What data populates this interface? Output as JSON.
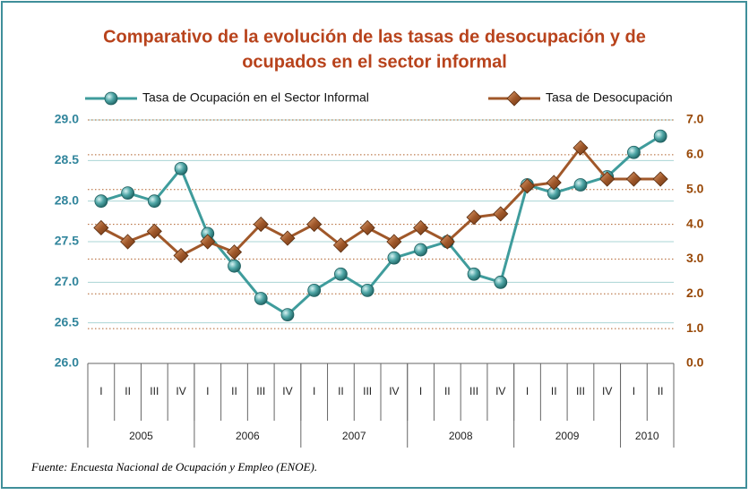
{
  "chart_data": {
    "type": "line",
    "title_lines": [
      "Comparativo de la evolución de las tasas de desocupación y de",
      "ocupados en el sector informal"
    ],
    "categories": [
      "I",
      "II",
      "III",
      "IV",
      "I",
      "II",
      "III",
      "IV",
      "I",
      "II",
      "III",
      "IV",
      "I",
      "II",
      "III",
      "IV",
      "I",
      "II",
      "III",
      "IV",
      "I",
      "II"
    ],
    "years": [
      {
        "label": "2005",
        "quarters": 4
      },
      {
        "label": "2006",
        "quarters": 4
      },
      {
        "label": "2007",
        "quarters": 4
      },
      {
        "label": "2008",
        "quarters": 4
      },
      {
        "label": "2009",
        "quarters": 4
      },
      {
        "label": "2010",
        "quarters": 2
      }
    ],
    "series": [
      {
        "name": "Tasa de Ocupación en el Sector Informal",
        "color": "#3f9c9c",
        "marker": "circle",
        "axis": "y",
        "values": [
          28.0,
          28.1,
          28.0,
          28.4,
          27.6,
          27.2,
          26.8,
          26.6,
          26.9,
          27.1,
          26.9,
          27.3,
          27.4,
          27.5,
          27.1,
          27.0,
          28.2,
          28.1,
          28.2,
          28.3,
          28.6,
          28.8
        ]
      },
      {
        "name": "Tasa de Desocupación",
        "color": "#a0582a",
        "marker": "diamond",
        "axis": "y2",
        "values": [
          3.9,
          3.5,
          3.8,
          3.1,
          3.5,
          3.2,
          4.0,
          3.6,
          4.0,
          3.4,
          3.9,
          3.5,
          3.9,
          3.5,
          4.2,
          4.3,
          5.1,
          5.2,
          6.2,
          5.3,
          5.3,
          5.3
        ]
      }
    ],
    "ylim": [
      26.0,
      29.0
    ],
    "yticks": [
      {
        "value": 26,
        "label": "26.0"
      },
      26.5,
      {
        "value": 27,
        "label": "27.0"
      },
      27.5,
      {
        "value": 28,
        "label": "28.0"
      },
      28.5,
      {
        "value": 29,
        "label": "29.0"
      }
    ],
    "y2lim": [
      0,
      7
    ],
    "y2ticks": [
      {
        "value": 0,
        "label": "0.0"
      },
      {
        "value": 1,
        "label": "1.0"
      },
      {
        "value": 2,
        "label": "2.0"
      },
      {
        "value": 3,
        "label": "3.0"
      },
      {
        "value": 4,
        "label": "4.0"
      },
      {
        "value": 5,
        "label": "5.0"
      },
      {
        "value": 6,
        "label": "6.0"
      },
      {
        "value": 7,
        "label": "7.0"
      }
    ],
    "grid": true,
    "source": "Fuente: Encuesta Nacional de Ocupación y Empleo (ENOE)."
  }
}
